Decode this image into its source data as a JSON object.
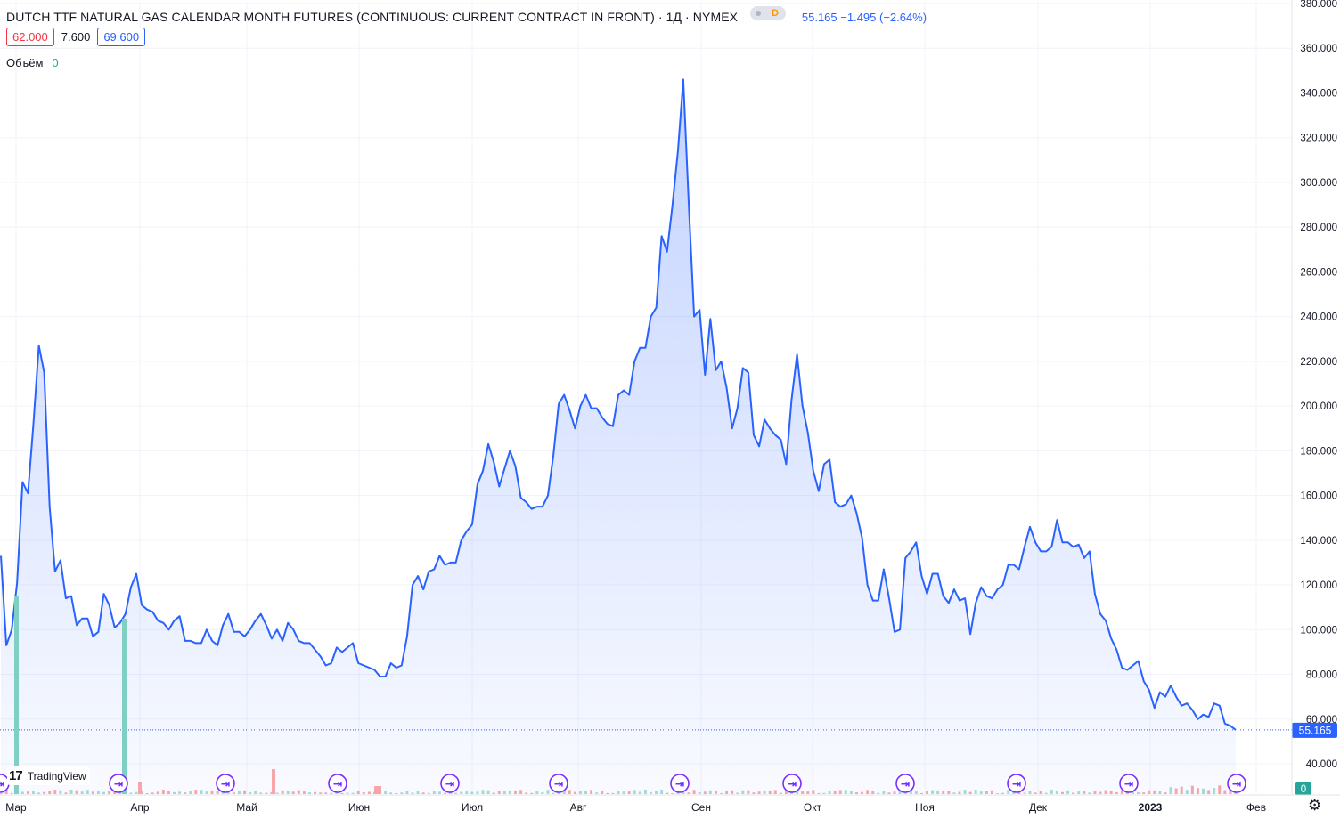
{
  "header": {
    "title": "DUTCH TTF NATURAL GAS CALENDAR MONTH FUTURES (CONTINUOUS: CURRENT CONTRACT IN FRONT) · 1Д · NYMEX",
    "badge_letter": "D",
    "last": "55.165",
    "change": "−1.495",
    "change_pct": "(−2.64%)"
  },
  "ohl": {
    "low_box": "62.000",
    "spread": "7.600",
    "high_box": "69.600"
  },
  "volume": {
    "label": "Объём",
    "value": "0"
  },
  "logo": {
    "text": "TradingView"
  },
  "icons": {
    "event_icon": "arrow-circle-icon",
    "settings_icon": "gear-icon"
  },
  "colors": {
    "line": "#2962ff",
    "up_volume": "#26a69a",
    "down_volume": "#ef5350",
    "event": "#7b2cff"
  },
  "chart_data": {
    "type": "area",
    "ylim": [
      40,
      380
    ],
    "y_ticks": [
      "380.000",
      "360.000",
      "340.000",
      "320.000",
      "300.000",
      "280.000",
      "260.000",
      "240.000",
      "220.000",
      "200.000",
      "180.000",
      "160.000",
      "140.000",
      "120.000",
      "100.000",
      "80.000",
      "60.000",
      "40.000"
    ],
    "x_labels": [
      "Мар",
      "Апр",
      "Май",
      "Июн",
      "Июл",
      "Авг",
      "Сен",
      "Окт",
      "Ноя",
      "Дек",
      "2023",
      "Фев"
    ],
    "last_price_label": "55.165",
    "volume_axis_label": "0",
    "series": [
      {
        "values": [
          133,
          93,
          100,
          121,
          166,
          161,
          192,
          227,
          215,
          155,
          126,
          131,
          114,
          115,
          102,
          105,
          105,
          97,
          99,
          116,
          111,
          101,
          103,
          107,
          119,
          125,
          111,
          109,
          108,
          104,
          103,
          100,
          104,
          106,
          95,
          95,
          94,
          94,
          100,
          95,
          93,
          102,
          107,
          99,
          99,
          97,
          100,
          104,
          107,
          102,
          96,
          100,
          95,
          103,
          100,
          95,
          94,
          94,
          91,
          88,
          84,
          85,
          92,
          90,
          92,
          94,
          85,
          84,
          83,
          82,
          79,
          79,
          85,
          83,
          84,
          97,
          120,
          124,
          118,
          126,
          127,
          133,
          129,
          130,
          130,
          140,
          144,
          147,
          165,
          171,
          183,
          175,
          164,
          172,
          180,
          173,
          159,
          157,
          154,
          155,
          155,
          160,
          178,
          201,
          205,
          198,
          190,
          200,
          205,
          199,
          199,
          195,
          192,
          191,
          205,
          207,
          205,
          220,
          226,
          226,
          240,
          244,
          276,
          269,
          290,
          314,
          346,
          291,
          240,
          243,
          214,
          239,
          216,
          220,
          208,
          190,
          199,
          217,
          215,
          187,
          182,
          194,
          190,
          187,
          185,
          174,
          203,
          223,
          200,
          188,
          171,
          162,
          174,
          176,
          157,
          155,
          156,
          160,
          152,
          141,
          120,
          113,
          113,
          127,
          114,
          99,
          100,
          132,
          135,
          139,
          124,
          116,
          125,
          125,
          115,
          112,
          118,
          113,
          114,
          98,
          112,
          119,
          115,
          114,
          118,
          120,
          129,
          129,
          127,
          137,
          146,
          139,
          135,
          135,
          137,
          149,
          139,
          139,
          137,
          138,
          132,
          135,
          116,
          107,
          104,
          96,
          91,
          83,
          82,
          84,
          86,
          77,
          73,
          65,
          72,
          70,
          75,
          70,
          66,
          67,
          64,
          60,
          62,
          61,
          67,
          66,
          58,
          57,
          55.165
        ]
      }
    ],
    "volume_spikes": [
      {
        "month_index": 0,
        "value": "up"
      },
      {
        "month_index": 1,
        "value": "up"
      }
    ]
  }
}
